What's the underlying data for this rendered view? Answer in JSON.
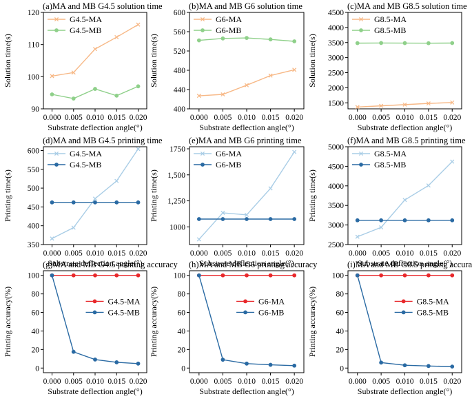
{
  "figure": {
    "panel_count": 9
  },
  "chart_data": [
    {
      "id": "a",
      "type": "line",
      "title": "(a)MA and MB G4.5 solution time",
      "xlabel": "Substrate deflection angle(°)",
      "ylabel": "Solution time(s)",
      "x": [
        0.0,
        0.005,
        0.01,
        0.015,
        0.02
      ],
      "xticks": [
        "0.000",
        "0.005",
        "0.010",
        "0.015",
        "0.020"
      ],
      "xlim": [
        -0.002,
        0.022
      ],
      "yticks": [
        90,
        100,
        110,
        120
      ],
      "ytick_labels": [
        "90",
        "100",
        "110",
        "120"
      ],
      "ylim": [
        90,
        120
      ],
      "legend_position": "top-left",
      "series": [
        {
          "name": "G4.5-MA",
          "color": "#f7b886",
          "marker": "x",
          "values": [
            100.2,
            101.3,
            108.6,
            112.3,
            116.2
          ]
        },
        {
          "name": "G4.5-MB",
          "color": "#8fd08a",
          "marker": "circle",
          "values": [
            94.5,
            93.2,
            96.2,
            94.1,
            97.0
          ]
        }
      ]
    },
    {
      "id": "b",
      "type": "line",
      "title": "(b)MA and MB G6 solution time",
      "xlabel": "Substrate deflection angle(°)",
      "ylabel": "Solution time(s)",
      "x": [
        0.0,
        0.005,
        0.01,
        0.015,
        0.02
      ],
      "xticks": [
        "0.000",
        "0.005",
        "0.010",
        "0.015",
        "0.020"
      ],
      "xlim": [
        -0.002,
        0.022
      ],
      "yticks": [
        400,
        440,
        480,
        520,
        560,
        600
      ],
      "ytick_labels": [
        "400",
        "440",
        "480",
        "520",
        "560",
        "600"
      ],
      "ylim": [
        400,
        600
      ],
      "legend_position": "top-left",
      "series": [
        {
          "name": "G6-MA",
          "color": "#f7b886",
          "marker": "x",
          "values": [
            427,
            430,
            449,
            469,
            481
          ]
        },
        {
          "name": "G6-MB",
          "color": "#8fd08a",
          "marker": "circle",
          "values": [
            542,
            546,
            547,
            544,
            540
          ]
        }
      ]
    },
    {
      "id": "c",
      "type": "line",
      "title": "(c)MA and MB G8.5 solution time",
      "xlabel": "Substrate deflection angle(°)",
      "ylabel": "Solution time(s)",
      "x": [
        0.0,
        0.005,
        0.01,
        0.015,
        0.02
      ],
      "xticks": [
        "0.000",
        "0.005",
        "0.010",
        "0.015",
        "0.020"
      ],
      "xlim": [
        -0.002,
        0.022
      ],
      "yticks": [
        1500,
        2000,
        2500,
        3000,
        3500,
        4000,
        4500
      ],
      "ytick_labels": [
        "1500",
        "2000",
        "2500",
        "3000",
        "3500",
        "4000",
        "4500"
      ],
      "ylim": [
        1300,
        4500
      ],
      "legend_position": "top-left",
      "series": [
        {
          "name": "G8.5-MA",
          "color": "#f7b886",
          "marker": "x",
          "values": [
            1360,
            1400,
            1440,
            1480,
            1510
          ]
        },
        {
          "name": "G8.5-MB",
          "color": "#8fd08a",
          "marker": "circle",
          "values": [
            3480,
            3485,
            3482,
            3478,
            3483
          ]
        }
      ]
    },
    {
      "id": "d",
      "type": "line",
      "title": "(d)MA and MB G4.5 printing time",
      "xlabel": "Substrate deflection angle(°)",
      "ylabel": "Printing time(s)",
      "x": [
        0.0,
        0.005,
        0.01,
        0.015,
        0.02
      ],
      "xticks": [
        "0.000",
        "0.005",
        "0.010",
        "0.015",
        "0.020"
      ],
      "xlim": [
        -0.002,
        0.022
      ],
      "yticks": [
        350,
        400,
        450,
        500,
        550,
        600
      ],
      "ytick_labels": [
        "350",
        "400",
        "450",
        "500",
        "550",
        "600"
      ],
      "ylim": [
        350,
        610
      ],
      "legend_position": "top-left",
      "series": [
        {
          "name": "G4.5-MA",
          "color": "#a9cde6",
          "marker": "x",
          "values": [
            366,
            395,
            472,
            519,
            604
          ]
        },
        {
          "name": "G4.5-MB",
          "color": "#2a6aa3",
          "marker": "circle",
          "values": [
            462,
            462,
            462,
            462,
            462
          ]
        }
      ]
    },
    {
      "id": "e",
      "type": "line",
      "title": "(e)MA and MB G6 printing time",
      "xlabel": "Substrate deflection angle(°)",
      "ylabel": "Printing time(s)",
      "x": [
        0.0,
        0.005,
        0.01,
        0.015,
        0.02
      ],
      "xticks": [
        "0.000",
        "0.005",
        "0.010",
        "0.015",
        "0.020"
      ],
      "xlim": [
        -0.002,
        0.022
      ],
      "yticks": [
        1000,
        1250,
        1500,
        1750
      ],
      "ytick_labels": [
        "1000",
        "1,250",
        "1,500",
        "1750"
      ],
      "ylim": [
        830,
        1770
      ],
      "legend_position": "top-left",
      "series": [
        {
          "name": "G6-MA",
          "color": "#a9cde6",
          "marker": "x",
          "values": [
            880,
            1135,
            1115,
            1370,
            1720
          ]
        },
        {
          "name": "G6-MB",
          "color": "#2a6aa3",
          "marker": "circle",
          "values": [
            1075,
            1075,
            1075,
            1075,
            1075
          ]
        }
      ]
    },
    {
      "id": "f",
      "type": "line",
      "title": "(f)MA and MB G8.5 printing time",
      "xlabel": "Substrate deflection angle(°)",
      "ylabel": "Printing time(s)",
      "x": [
        0.0,
        0.005,
        0.01,
        0.015,
        0.02
      ],
      "xticks": [
        "0.000",
        "0.005",
        "0.010",
        "0.015",
        "0.020"
      ],
      "xlim": [
        -0.002,
        0.022
      ],
      "yticks": [
        2500,
        3000,
        3500,
        4000,
        4500,
        5000
      ],
      "ytick_labels": [
        "2500",
        "3000",
        "3500",
        "4000",
        "4500",
        "5000"
      ],
      "ylim": [
        2500,
        5000
      ],
      "legend_position": "top-left",
      "series": [
        {
          "name": "G8.5-MA",
          "color": "#a9cde6",
          "marker": "x",
          "values": [
            2700,
            2940,
            3640,
            4010,
            4620
          ]
        },
        {
          "name": "G8.5-MB",
          "color": "#2a6aa3",
          "marker": "circle",
          "values": [
            3120,
            3120,
            3120,
            3120,
            3120
          ]
        }
      ]
    },
    {
      "id": "g",
      "type": "line",
      "title": "(g)MA and MB G4.5 printing accuracy",
      "xlabel": "Substrate deflection angle(°)",
      "ylabel": "Printing accuracy(%)",
      "x": [
        0.0,
        0.005,
        0.01,
        0.015,
        0.02
      ],
      "xticks": [
        "0.000",
        "0.005",
        "0.010",
        "0.015",
        "0.020"
      ],
      "xlim": [
        -0.002,
        0.022
      ],
      "yticks": [
        0,
        20,
        40,
        60,
        80,
        100
      ],
      "ytick_labels": [
        "0",
        "20",
        "40",
        "60",
        "80",
        "100"
      ],
      "ylim": [
        -5,
        105
      ],
      "legend_position": "upper-right",
      "series": [
        {
          "name": "G4.5-MA",
          "color": "#e8282b",
          "marker": "circle",
          "values": [
            100,
            100,
            100,
            100,
            100
          ]
        },
        {
          "name": "G4.5-MB",
          "color": "#2a6aa3",
          "marker": "circle",
          "values": [
            100,
            17.5,
            9.2,
            6.2,
            4.8
          ]
        }
      ]
    },
    {
      "id": "h",
      "type": "line",
      "title": "(h)MA and MB G6 printing accuracy",
      "xlabel": "Substrate deflection angle(°)",
      "ylabel": "Printing accuracy(%)",
      "x": [
        0.0,
        0.005,
        0.01,
        0.015,
        0.02
      ],
      "xticks": [
        "0.000",
        "0.005",
        "0.010",
        "0.015",
        "0.020"
      ],
      "xlim": [
        -0.002,
        0.022
      ],
      "yticks": [
        0,
        20,
        40,
        60,
        80,
        100
      ],
      "ytick_labels": [
        "0",
        "20",
        "40",
        "60",
        "80",
        "100"
      ],
      "ylim": [
        -5,
        105
      ],
      "legend_position": "upper-right",
      "series": [
        {
          "name": "G6-MA",
          "color": "#e8282b",
          "marker": "circle",
          "values": [
            100,
            100,
            100,
            100,
            100
          ]
        },
        {
          "name": "G6-MB",
          "color": "#2a6aa3",
          "marker": "circle",
          "values": [
            100,
            9.0,
            4.8,
            3.5,
            2.6
          ]
        }
      ]
    },
    {
      "id": "i",
      "type": "line",
      "title": "(i)MA and MB G8.5 printing accuracy",
      "xlabel": "Substrate deflection angle(°)",
      "ylabel": "Printing accuracy(%)",
      "x": [
        0.0,
        0.005,
        0.01,
        0.015,
        0.02
      ],
      "xticks": [
        "0.000",
        "0.005",
        "0.010",
        "0.015",
        "0.020"
      ],
      "xlim": [
        -0.002,
        0.022
      ],
      "yticks": [
        0,
        20,
        40,
        60,
        80,
        100
      ],
      "ytick_labels": [
        "0",
        "20",
        "40",
        "60",
        "80",
        "100"
      ],
      "ylim": [
        -5,
        105
      ],
      "legend_position": "upper-right",
      "series": [
        {
          "name": "G8.5-MA",
          "color": "#e8282b",
          "marker": "circle",
          "values": [
            100,
            100,
            100,
            100,
            100
          ]
        },
        {
          "name": "G8.5-MB",
          "color": "#2a6aa3",
          "marker": "circle",
          "values": [
            100,
            5.9,
            3.0,
            2.2,
            1.6
          ]
        }
      ]
    }
  ]
}
